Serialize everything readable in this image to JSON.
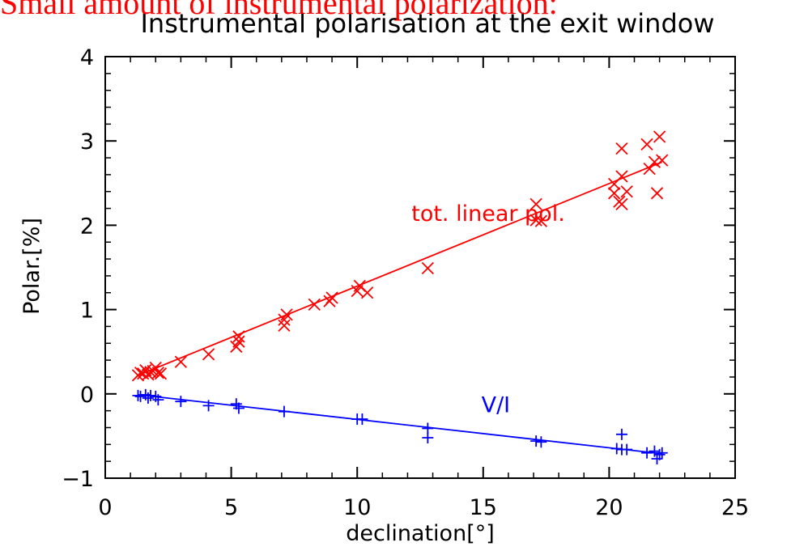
{
  "overlay_title": "Small amount of instrumental polarization:",
  "chart_data": {
    "type": "scatter",
    "title": "Instrumental polarisation at the exit window",
    "xlabel": "declination[°]",
    "ylabel": "Polar.[%]",
    "xlim": [
      0,
      25
    ],
    "ylim": [
      -1,
      4
    ],
    "x_ticks": [
      0,
      5,
      10,
      15,
      20,
      25
    ],
    "y_ticks": [
      -1,
      0,
      1,
      2,
      3,
      4
    ],
    "x_tick_labels": [
      "0",
      "5",
      "10",
      "15",
      "20",
      "25"
    ],
    "y_tick_labels": [
      "−1",
      "0",
      "1",
      "2",
      "3",
      "4"
    ],
    "grid": false,
    "series": [
      {
        "name": "tot. linear pol.",
        "marker": "x",
        "color": "#ff0000",
        "fit_line": [
          [
            1.3,
            0.22
          ],
          [
            22.1,
            2.75
          ]
        ],
        "points": [
          [
            1.3,
            0.22
          ],
          [
            1.4,
            0.25
          ],
          [
            1.5,
            0.24
          ],
          [
            1.6,
            0.28
          ],
          [
            1.7,
            0.23
          ],
          [
            1.8,
            0.26
          ],
          [
            1.9,
            0.27
          ],
          [
            2.0,
            0.31
          ],
          [
            2.1,
            0.25
          ],
          [
            2.2,
            0.24
          ],
          [
            3.0,
            0.38
          ],
          [
            4.1,
            0.47
          ],
          [
            5.2,
            0.56
          ],
          [
            5.3,
            0.62
          ],
          [
            5.3,
            0.68
          ],
          [
            7.1,
            0.81
          ],
          [
            7.1,
            0.88
          ],
          [
            7.2,
            0.94
          ],
          [
            8.3,
            1.06
          ],
          [
            8.9,
            1.1
          ],
          [
            9.0,
            1.14
          ],
          [
            10.0,
            1.22
          ],
          [
            10.1,
            1.28
          ],
          [
            10.4,
            1.2
          ],
          [
            12.8,
            1.49
          ],
          [
            17.1,
            2.06
          ],
          [
            17.1,
            2.25
          ],
          [
            17.3,
            2.05
          ],
          [
            20.2,
            2.38
          ],
          [
            20.2,
            2.49
          ],
          [
            20.4,
            2.28
          ],
          [
            20.5,
            2.25
          ],
          [
            20.5,
            2.58
          ],
          [
            20.5,
            2.91
          ],
          [
            20.7,
            2.4
          ],
          [
            21.5,
            2.96
          ],
          [
            21.6,
            2.67
          ],
          [
            21.8,
            2.75
          ],
          [
            21.9,
            2.38
          ],
          [
            22.0,
            3.05
          ],
          [
            22.1,
            2.77
          ]
        ]
      },
      {
        "name": "V/I",
        "marker": "+",
        "color": "#0000ff",
        "fit_line": [
          [
            1.3,
            -0.01
          ],
          [
            22.1,
            -0.71
          ]
        ],
        "points": [
          [
            1.3,
            -0.02
          ],
          [
            1.4,
            -0.03
          ],
          [
            1.6,
            -0.01
          ],
          [
            1.7,
            -0.05
          ],
          [
            1.8,
            -0.02
          ],
          [
            2.0,
            -0.03
          ],
          [
            2.1,
            -0.07
          ],
          [
            3.0,
            -0.09
          ],
          [
            4.1,
            -0.14
          ],
          [
            5.2,
            -0.12
          ],
          [
            5.3,
            -0.17
          ],
          [
            7.1,
            -0.21
          ],
          [
            10.0,
            -0.3
          ],
          [
            10.2,
            -0.3
          ],
          [
            12.8,
            -0.41
          ],
          [
            12.8,
            -0.52
          ],
          [
            17.1,
            -0.56
          ],
          [
            17.3,
            -0.57
          ],
          [
            20.3,
            -0.65
          ],
          [
            20.5,
            -0.66
          ],
          [
            20.5,
            -0.48
          ],
          [
            20.7,
            -0.66
          ],
          [
            21.5,
            -0.7
          ],
          [
            21.8,
            -0.68
          ],
          [
            21.9,
            -0.77
          ],
          [
            22.0,
            -0.72
          ],
          [
            22.1,
            -0.7
          ]
        ]
      }
    ],
    "annotations": [
      {
        "text": "tot. linear pol.",
        "x": 15.2,
        "y": 2.05,
        "color": "#ff0000"
      },
      {
        "text": "V/I",
        "x": 15.5,
        "y": -0.22,
        "color": "#0000ff"
      }
    ]
  }
}
